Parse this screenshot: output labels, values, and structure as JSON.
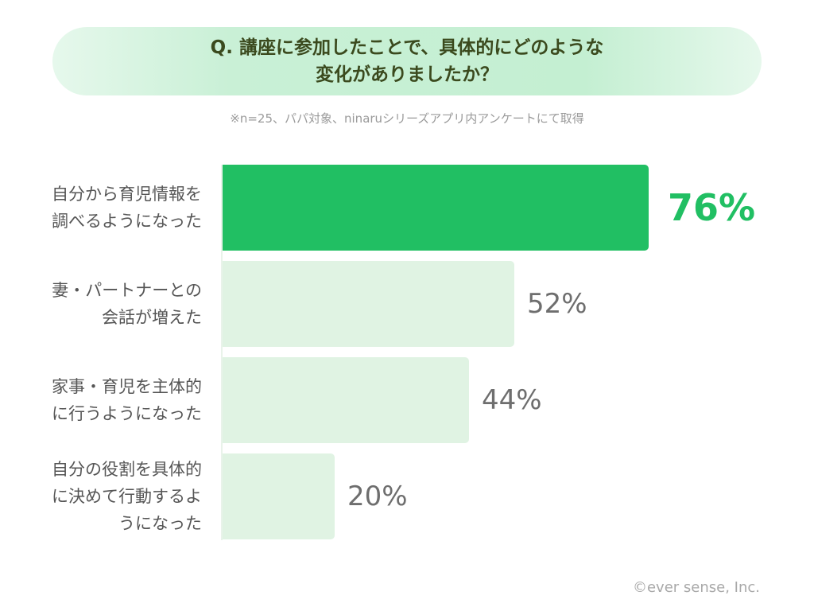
{
  "header": {
    "title_line1": "Q. 講座に参加したことで、具体的にどのような",
    "title_line2": "変化がありましたか？",
    "note": "※n=25、パパ対象、ninaruシリーズアプリ内アンケートにて取得"
  },
  "chart_data": {
    "type": "bar",
    "orientation": "horizontal",
    "title": "Q. 講座に参加したことで、具体的にどのような変化がありましたか？",
    "xlabel": "",
    "ylabel": "",
    "xlim": [
      0,
      100
    ],
    "unit": "%",
    "categories": [
      "自分から育児情報を調べるようになった",
      "妻・パートナーとの会話が増えた",
      "家事・育児を主体的に行うようになった",
      "自分の役割を具体的に決めて行動するようになった"
    ],
    "category_lines": [
      [
        "自分から育児情報を",
        "調べるようになった"
      ],
      [
        "妻・パートナーとの",
        "会話が増えた"
      ],
      [
        "家事・育児を主体的",
        "に行うようになった"
      ],
      [
        "自分の役割を具体的",
        "に決めて行動するよ",
        "うになった"
      ]
    ],
    "values": [
      76,
      52,
      44,
      20
    ],
    "value_labels": [
      "76%",
      "52%",
      "44%",
      "20%"
    ],
    "highlight_index": 0
  },
  "colors": {
    "highlight_bar": "#21bf63",
    "bar": "#e0f3e3",
    "highlight_text": "#21bf63",
    "value_text": "#6e6e6e"
  },
  "footer": {
    "copyright": "©ever sense, Inc."
  }
}
